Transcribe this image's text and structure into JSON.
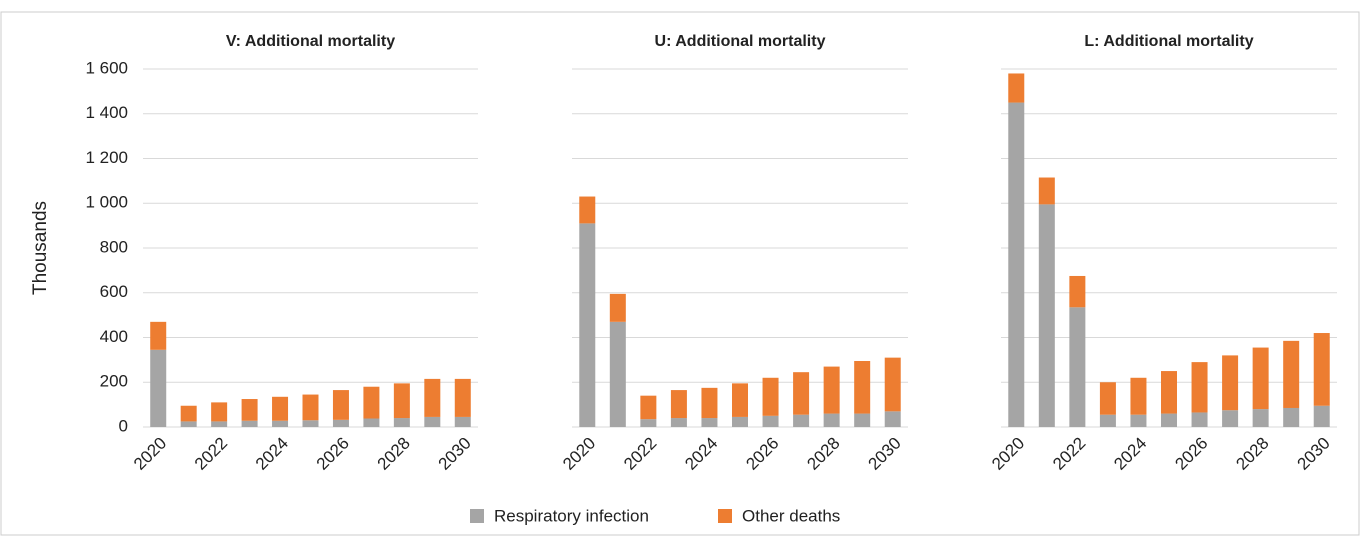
{
  "chart_data": [
    {
      "type": "bar",
      "stacked": true,
      "title": "V: Additional mortality",
      "y_label": "Thousands",
      "categories": [
        2020,
        null,
        2022,
        null,
        2024,
        null,
        2026,
        null,
        2028,
        null,
        2030
      ],
      "series": [
        {
          "name": "Respiratory infection",
          "color": "#a5a5a5",
          "values": [
            345,
            25,
            25,
            28,
            28,
            30,
            32,
            38,
            40,
            45,
            45
          ]
        },
        {
          "name": "Other deaths",
          "color": "#ed7d31",
          "values": [
            125,
            70,
            85,
            97,
            107,
            115,
            133,
            142,
            155,
            170,
            170
          ]
        }
      ],
      "ylim": [
        0,
        1600
      ],
      "yticks": [
        0,
        200,
        400,
        600,
        800,
        {
          "value": 1000,
          "label": "1 000"
        },
        {
          "value": 1200,
          "label": "1 200"
        },
        {
          "value": 1400,
          "label": "1 400"
        },
        {
          "value": 1600,
          "label": "1 600"
        }
      ],
      "grid": true,
      "legend": "bottom"
    },
    {
      "type": "bar",
      "stacked": true,
      "title": "U: Additional mortality",
      "categories": [
        2020,
        null,
        2022,
        null,
        2024,
        null,
        2026,
        null,
        2028,
        null,
        2030
      ],
      "series": [
        {
          "name": "Respiratory infection",
          "color": "#a5a5a5",
          "values": [
            910,
            470,
            35,
            40,
            40,
            45,
            50,
            55,
            60,
            60,
            70
          ]
        },
        {
          "name": "Other deaths",
          "color": "#ed7d31",
          "values": [
            120,
            125,
            105,
            125,
            135,
            150,
            170,
            190,
            210,
            235,
            240
          ]
        }
      ],
      "ylim": [
        0,
        1600
      ],
      "yticks": [
        0,
        200,
        400,
        600,
        800,
        1000,
        1200,
        1400,
        1600
      ],
      "grid": true
    },
    {
      "type": "bar",
      "stacked": true,
      "title": "L: Additional mortality",
      "categories": [
        2020,
        null,
        2022,
        null,
        2024,
        null,
        2026,
        null,
        2028,
        null,
        2030
      ],
      "series": [
        {
          "name": "Respiratory infection",
          "color": "#a5a5a5",
          "values": [
            1450,
            995,
            535,
            55,
            55,
            60,
            65,
            75,
            80,
            85,
            95
          ]
        },
        {
          "name": "Other deaths",
          "color": "#ed7d31",
          "values": [
            130,
            120,
            140,
            145,
            165,
            190,
            225,
            245,
            275,
            300,
            325
          ]
        }
      ],
      "ylim": [
        0,
        1600
      ],
      "yticks": [
        0,
        200,
        400,
        600,
        800,
        1000,
        1200,
        1400,
        1600
      ],
      "grid": true
    }
  ]
}
